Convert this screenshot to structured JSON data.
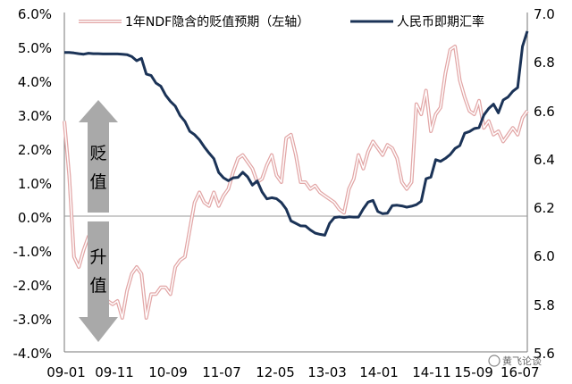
{
  "chart_data": {
    "type": "line",
    "left_axis": {
      "ylim": [
        -4.0,
        6.0
      ],
      "ticks": [
        "6.0%",
        "5.0%",
        "4.0%",
        "3.0%",
        "2.0%",
        "1.0%",
        "0.0%",
        "-1.0%",
        "-2.0%",
        "-3.0%",
        "-4.0%"
      ]
    },
    "right_axis": {
      "ylim": [
        5.6,
        7.0
      ],
      "ticks": [
        "7.0",
        "6.8",
        "6.6",
        "6.4",
        "6.2",
        "6.0",
        "5.8",
        "5.6"
      ]
    },
    "x_ticks": [
      "09-01",
      "09-11",
      "10-09",
      "11-07",
      "12-05",
      "13-03",
      "14-01",
      "14-11",
      "15-09",
      "16-07"
    ],
    "x_range": [
      0,
      96
    ],
    "series": [
      {
        "name": "1年NDF隐含的贬值预期（左轴）",
        "axis": "left",
        "color": "#e2a6a6",
        "style": "double-line",
        "x": [
          0,
          1,
          2,
          3,
          4,
          5,
          6,
          7,
          8,
          9,
          10,
          11,
          12,
          13,
          14,
          15,
          16,
          17,
          18,
          19,
          20,
          21,
          22,
          23,
          24,
          25,
          26,
          27,
          28,
          29,
          30,
          31,
          32,
          33,
          34,
          35,
          36,
          37,
          38,
          39,
          40,
          41,
          42,
          43,
          44,
          45,
          46,
          47,
          48,
          49,
          50,
          51,
          52,
          53,
          54,
          55,
          56,
          57,
          58,
          59,
          60,
          61,
          62,
          63,
          64,
          65,
          66,
          67,
          68,
          69,
          70,
          71,
          72,
          73,
          74,
          75,
          76,
          77,
          78,
          79,
          80,
          81,
          82,
          83,
          84,
          85,
          86,
          87,
          88,
          89,
          90,
          91,
          92,
          93,
          94,
          95,
          96
        ],
        "values": [
          2.8,
          1.2,
          -1.2,
          -1.5,
          -1.0,
          -0.6,
          -1.8,
          -2.8,
          -3.0,
          -2.5,
          -2.6,
          -2.5,
          -3.0,
          -2.2,
          -1.7,
          -1.5,
          -1.7,
          -3.0,
          -2.3,
          -2.3,
          -2.1,
          -2.1,
          -2.3,
          -1.5,
          -1.3,
          -1.2,
          -0.4,
          0.4,
          0.7,
          0.4,
          0.3,
          0.7,
          0.3,
          0.6,
          0.8,
          1.3,
          1.7,
          1.8,
          1.6,
          1.4,
          1.0,
          1.1,
          1.5,
          1.8,
          1.2,
          1.0,
          2.3,
          2.4,
          1.8,
          1.0,
          1.0,
          0.8,
          0.9,
          0.7,
          0.6,
          0.5,
          0.4,
          0.2,
          0.1,
          0.8,
          1.1,
          1.8,
          1.4,
          1.9,
          2.2,
          2.0,
          1.8,
          2.1,
          2.0,
          1.7,
          1.0,
          0.8,
          1.0,
          3.3,
          3.0,
          3.7,
          2.5,
          3.0,
          3.2,
          4.2,
          4.9,
          5.0,
          4.0,
          3.5,
          3.1,
          3.0,
          3.4,
          2.6,
          2.8,
          2.4,
          2.5,
          2.2,
          2.4,
          2.6,
          2.4,
          2.9,
          3.1
        ]
      },
      {
        "name": "人民币即期汇率",
        "axis": "right",
        "color": "#1b3357",
        "style": "solid",
        "x": [
          0,
          1,
          2,
          3,
          4,
          5,
          6,
          7,
          8,
          9,
          10,
          11,
          12,
          13,
          14,
          15,
          16,
          17,
          18,
          19,
          20,
          21,
          22,
          23,
          24,
          25,
          26,
          27,
          28,
          29,
          30,
          31,
          32,
          33,
          34,
          35,
          36,
          37,
          38,
          39,
          40,
          41,
          42,
          43,
          44,
          45,
          46,
          47,
          48,
          49,
          50,
          51,
          52,
          53,
          54,
          55,
          56,
          57,
          58,
          59,
          60,
          61,
          62,
          63,
          64,
          65,
          66,
          67,
          68,
          69,
          70,
          71,
          72,
          73,
          74,
          75,
          76,
          77,
          78,
          79,
          80,
          81,
          82,
          83,
          84,
          85,
          86,
          87,
          88,
          89,
          90,
          91,
          92,
          93,
          94,
          95,
          96
        ],
        "values": [
          6.835,
          6.835,
          6.833,
          6.83,
          6.828,
          6.832,
          6.83,
          6.83,
          6.829,
          6.829,
          6.829,
          6.829,
          6.828,
          6.826,
          6.818,
          6.801,
          6.811,
          6.746,
          6.74,
          6.709,
          6.696,
          6.659,
          6.633,
          6.614,
          6.575,
          6.551,
          6.51,
          6.496,
          6.475,
          6.446,
          6.42,
          6.397,
          6.34,
          6.318,
          6.306,
          6.318,
          6.32,
          6.341,
          6.322,
          6.288,
          6.305,
          6.26,
          6.231,
          6.236,
          6.232,
          6.216,
          6.189,
          6.14,
          6.13,
          6.12,
          6.119,
          6.103,
          6.09,
          6.085,
          6.081,
          6.13,
          6.154,
          6.157,
          6.154,
          6.157,
          6.156,
          6.156,
          6.19,
          6.218,
          6.225,
          6.179,
          6.17,
          6.172,
          6.203,
          6.205,
          6.202,
          6.197,
          6.201,
          6.207,
          6.221,
          6.314,
          6.321,
          6.393,
          6.386,
          6.398,
          6.414,
          6.439,
          6.451,
          6.502,
          6.509,
          6.521,
          6.525,
          6.577,
          6.604,
          6.622,
          6.586,
          6.639,
          6.651,
          6.675,
          6.69,
          6.86,
          6.923
        ]
      }
    ],
    "annotations": {
      "depreciation_label": "贬值",
      "appreciation_label": "升值"
    },
    "watermark": "黄飞论谈"
  }
}
